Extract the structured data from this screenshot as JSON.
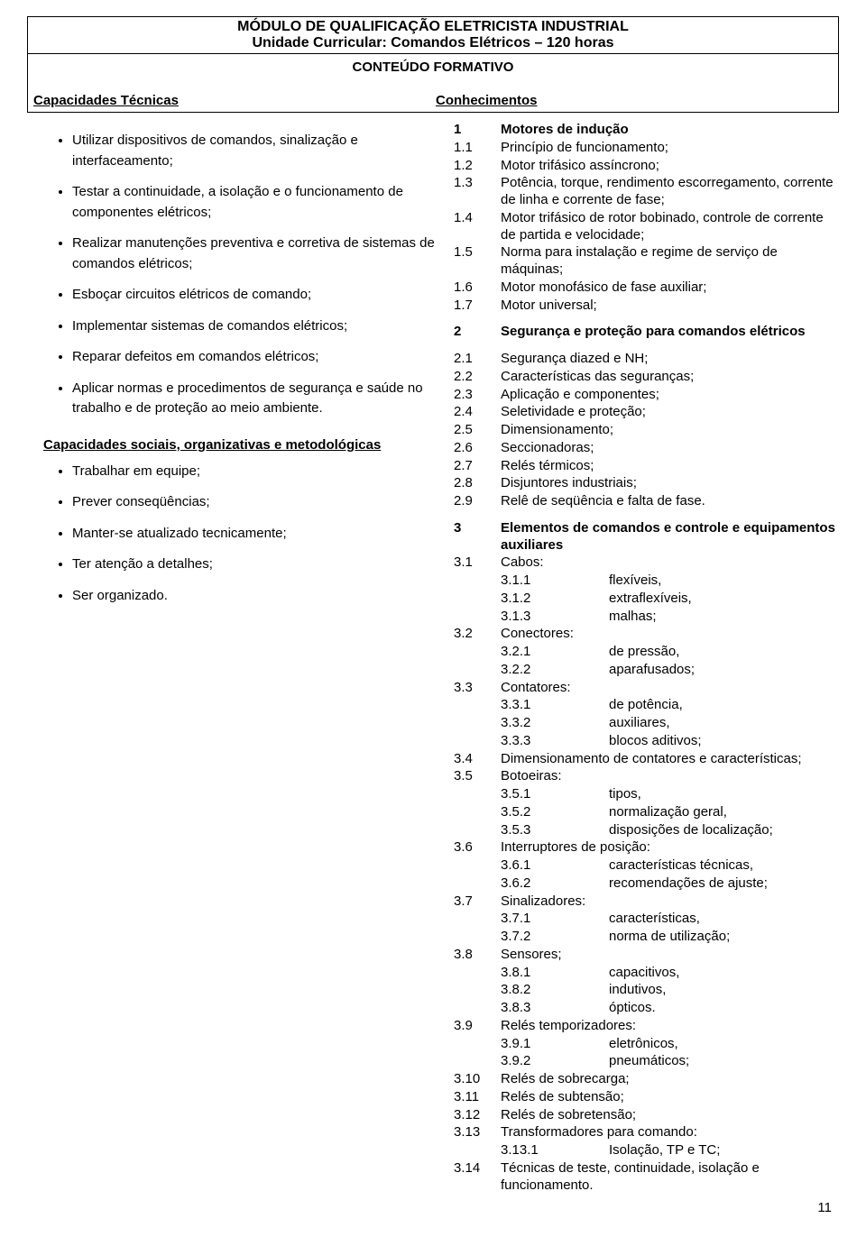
{
  "page_number": "11",
  "header": {
    "module_title": "MÓDULO DE QUALIFICAÇÃO ELETRICISTA INDUSTRIAL",
    "unit_title": "Unidade Curricular: Comandos Elétricos – 120 horas",
    "content_title": "CONTEÚDO FORMATIVO",
    "cap_left": "Capacidades Técnicas",
    "con_right": "Conhecimentos"
  },
  "cap_tec": [
    "Utilizar dispositivos de comandos, sinalização e interfaceamento;",
    "Testar a continuidade, a isolação e o funcionamento de componentes elétricos;",
    "Realizar manutenções preventiva e corretiva de sistemas de comandos elétricos;",
    "Esboçar circuitos elétricos de comando;",
    "Implementar sistemas de comandos elétricos;",
    "Reparar defeitos em comandos elétricos;",
    "Aplicar normas e procedimentos de segurança e saúde no trabalho e de proteção ao meio ambiente."
  ],
  "cap_soc_heading": "Capacidades sociais, organizativas e metodológicas",
  "cap_soc": [
    "Trabalhar em equipe;",
    "Prever conseqüências;",
    "Manter-se atualizado tecnicamente;",
    "Ter atenção a detalhes;",
    "Ser organizado."
  ],
  "knowledge": [
    {
      "n": "1",
      "t": "Motores de indução",
      "bold": true
    },
    {
      "n": "1.1",
      "t": "Princípio de funcionamento;"
    },
    {
      "n": "1.2",
      "t": "Motor trifásico assíncrono;"
    },
    {
      "n": "1.3",
      "t": "Potência, torque, rendimento escorregamento, corrente de linha e corrente de fase;"
    },
    {
      "n": "1.4",
      "t": "Motor trifásico de rotor bobinado, controle de corrente de partida e velocidade;"
    },
    {
      "n": "1.5",
      "t": "Norma para instalação e regime de serviço de máquinas;"
    },
    {
      "n": "1.6",
      "t": "Motor monofásico de fase auxiliar;"
    },
    {
      "n": "1.7",
      "t": "Motor universal;"
    },
    {
      "gap": true
    },
    {
      "n": "2",
      "t": "Segurança e proteção para comandos elétricos",
      "bold": true
    },
    {
      "gap": true
    },
    {
      "n": "2.1",
      "t": "Segurança diazed e NH;"
    },
    {
      "n": "2.2",
      "t": "Características das seguranças;"
    },
    {
      "n": "2.3",
      "t": "Aplicação e componentes;"
    },
    {
      "n": "2.4",
      "t": "Seletividade e proteção;"
    },
    {
      "n": "2.5",
      "t": "Dimensionamento;"
    },
    {
      "n": "2.6",
      "t": "Seccionadoras;"
    },
    {
      "n": "2.7",
      "t": "Relés térmicos;"
    },
    {
      "n": "2.8",
      "t": "Disjuntores industriais;"
    },
    {
      "n": "2.9",
      "t": "Relê de seqüência e falta de fase."
    },
    {
      "gap": true
    },
    {
      "n": "3",
      "t": "Elementos de comandos e controle e equipamentos auxiliares",
      "bold": true
    },
    {
      "n": "3.1",
      "t": "Cabos:"
    },
    {
      "n": "3.1.1",
      "t": "flexíveis,",
      "sub": true
    },
    {
      "n": "3.1.2",
      "t": "extraflexíveis,",
      "sub": true
    },
    {
      "n": "3.1.3",
      "t": "malhas;",
      "sub": true
    },
    {
      "n": "3.2",
      "t": "Conectores:"
    },
    {
      "n": "3.2.1",
      "t": "de pressão,",
      "sub": true
    },
    {
      "n": "3.2.2",
      "t": "aparafusados;",
      "sub": true
    },
    {
      "n": "3.3",
      "t": "Contatores:"
    },
    {
      "n": "3.3.1",
      "t": "de potência,",
      "sub": true
    },
    {
      "n": "3.3.2",
      "t": "auxiliares,",
      "sub": true
    },
    {
      "n": "3.3.3",
      "t": "blocos aditivos;",
      "sub": true
    },
    {
      "n": "3.4",
      "t": "Dimensionamento de contatores e características;"
    },
    {
      "n": "3.5",
      "t": "Botoeiras:"
    },
    {
      "n": "3.5.1",
      "t": "tipos,",
      "sub": true
    },
    {
      "n": "3.5.2",
      "t": "normalização geral,",
      "sub": true
    },
    {
      "n": "3.5.3",
      "t": "disposições de localização;",
      "sub": true
    },
    {
      "n": "3.6",
      "t": "Interruptores de posição:"
    },
    {
      "n": "3.6.1",
      "t": "características técnicas,",
      "sub": true
    },
    {
      "n": "3.6.2",
      "t": "recomendações de ajuste;",
      "sub": true
    },
    {
      "n": "3.7",
      "t": "Sinalizadores:"
    },
    {
      "n": "3.7.1",
      "t": "características,",
      "sub": true
    },
    {
      "n": "3.7.2",
      "t": "norma de utilização;",
      "sub": true
    },
    {
      "n": "3.8",
      "t": "Sensores;"
    },
    {
      "n": "3.8.1",
      "t": "capacitivos,",
      "sub": true
    },
    {
      "n": "3.8.2",
      "t": "indutivos,",
      "sub": true
    },
    {
      "n": "3.8.3",
      "t": "ópticos.",
      "sub": true
    },
    {
      "n": "3.9",
      "t": "Relés temporizadores:"
    },
    {
      "n": "3.9.1",
      "t": "eletrônicos,",
      "sub": true
    },
    {
      "n": "3.9.2",
      "t": "pneumáticos;",
      "sub": true
    },
    {
      "n": "3.10",
      "t": "Relés de sobrecarga;"
    },
    {
      "n": "3.11",
      "t": "Relés de subtensão;"
    },
    {
      "n": "3.12",
      "t": "Relés de sobretensão;"
    },
    {
      "n": "3.13",
      "t": "Transformadores para comando:"
    },
    {
      "n": "3.13.1",
      "t": "Isolação, TP e TC;",
      "sub": true
    },
    {
      "n": "3.14",
      "t": "Técnicas de teste, continuidade, isolação e funcionamento."
    }
  ]
}
